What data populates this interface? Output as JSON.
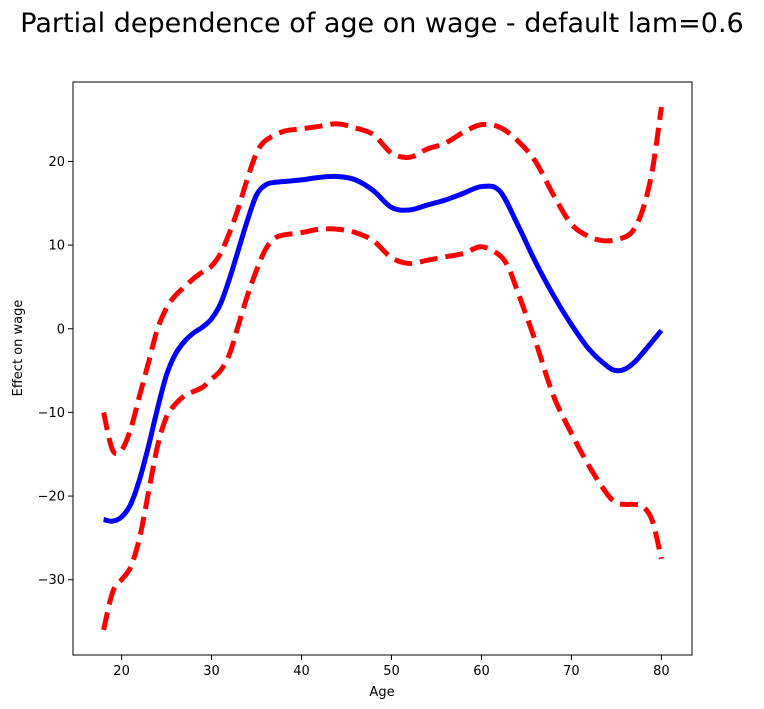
{
  "chart_data": {
    "type": "line",
    "title": "Partial dependence of age on wage - default lam=0.6",
    "xlabel": "Age",
    "ylabel": "Effect on wage",
    "xlim": [
      14.6,
      83.4
    ],
    "ylim": [
      -39,
      29.5
    ],
    "xticks": [
      20,
      30,
      40,
      50,
      60,
      70,
      80
    ],
    "yticks": [
      -30,
      -20,
      -10,
      0,
      10,
      20
    ],
    "xtick_labels": [
      "20",
      "30",
      "40",
      "50",
      "60",
      "70",
      "80"
    ],
    "ytick_labels": [
      "−30",
      "−20",
      "−10",
      "0",
      "10",
      "20"
    ],
    "grid": false,
    "series": [
      {
        "name": "partial dependence",
        "color": "#0000ff",
        "style": "solid",
        "x": [
          18,
          19,
          20,
          21,
          22,
          23,
          24,
          25,
          26,
          27,
          28,
          29,
          30,
          31,
          32,
          33,
          34,
          35,
          36,
          37,
          38,
          40,
          42,
          44,
          46,
          48,
          50,
          52,
          54,
          56,
          58,
          60,
          62,
          64,
          66,
          68,
          70,
          72,
          74,
          75,
          76,
          77,
          78,
          79,
          80
        ],
        "y": [
          -22.8,
          -23,
          -22.5,
          -21,
          -18,
          -14,
          -9.5,
          -5.5,
          -3,
          -1.5,
          -0.5,
          0.2,
          1.2,
          3,
          6,
          9.5,
          13,
          16,
          17.2,
          17.5,
          17.6,
          17.8,
          18.1,
          18.2,
          17.8,
          16.5,
          14.5,
          14.2,
          14.8,
          15.4,
          16.2,
          17,
          16.5,
          12.5,
          8,
          4,
          0.5,
          -2.5,
          -4.5,
          -5,
          -4.8,
          -4,
          -2.8,
          -1.5,
          -0.2
        ]
      },
      {
        "name": "upper confidence bound",
        "color": "#ff0000",
        "style": "dashed",
        "x": [
          18,
          19,
          20,
          21,
          22,
          23,
          24,
          25,
          26,
          27,
          28,
          29,
          30,
          31,
          32,
          33,
          34,
          35,
          36,
          38,
          40,
          42,
          44,
          46,
          48,
          50,
          52,
          54,
          56,
          58,
          60,
          62,
          64,
          66,
          68,
          70,
          72,
          74,
          76,
          77,
          78,
          79,
          80
        ],
        "y": [
          -10,
          -14.5,
          -14.5,
          -12,
          -8,
          -4,
          0,
          2.5,
          4,
          5,
          6,
          6.8,
          7.5,
          9,
          11.5,
          14.5,
          18,
          21,
          22.5,
          23.6,
          23.9,
          24.2,
          24.5,
          24,
          23.2,
          21,
          20.5,
          21.5,
          22.2,
          23.5,
          24.4,
          24.1,
          22.5,
          20,
          16,
          12.5,
          11,
          10.5,
          11,
          12,
          14.5,
          19,
          26.5
        ]
      },
      {
        "name": "lower confidence bound",
        "color": "#ff0000",
        "style": "dashed",
        "x": [
          18,
          19,
          20,
          21,
          22,
          23,
          24,
          25,
          26,
          27,
          28,
          29,
          30,
          31,
          32,
          33,
          34,
          35,
          36,
          37,
          38,
          40,
          42,
          44,
          46,
          48,
          50,
          52,
          54,
          56,
          58,
          60,
          62,
          63,
          64,
          66,
          68,
          70,
          72,
          74,
          75,
          76,
          77,
          78,
          79,
          80
        ],
        "y": [
          -36,
          -31.5,
          -30,
          -28.5,
          -25,
          -19.5,
          -14,
          -10.5,
          -9,
          -8,
          -7.5,
          -7,
          -6,
          -5,
          -3,
          0.5,
          4,
          7,
          9.5,
          10.8,
          11.2,
          11.5,
          11.9,
          11.9,
          11.5,
          10.5,
          8.5,
          7.8,
          8.2,
          8.6,
          9,
          9.8,
          8.8,
          7.3,
          4.5,
          -1.5,
          -8,
          -12.5,
          -16.5,
          -19.8,
          -20.8,
          -21,
          -21,
          -21.3,
          -23,
          -27.5
        ]
      }
    ]
  }
}
